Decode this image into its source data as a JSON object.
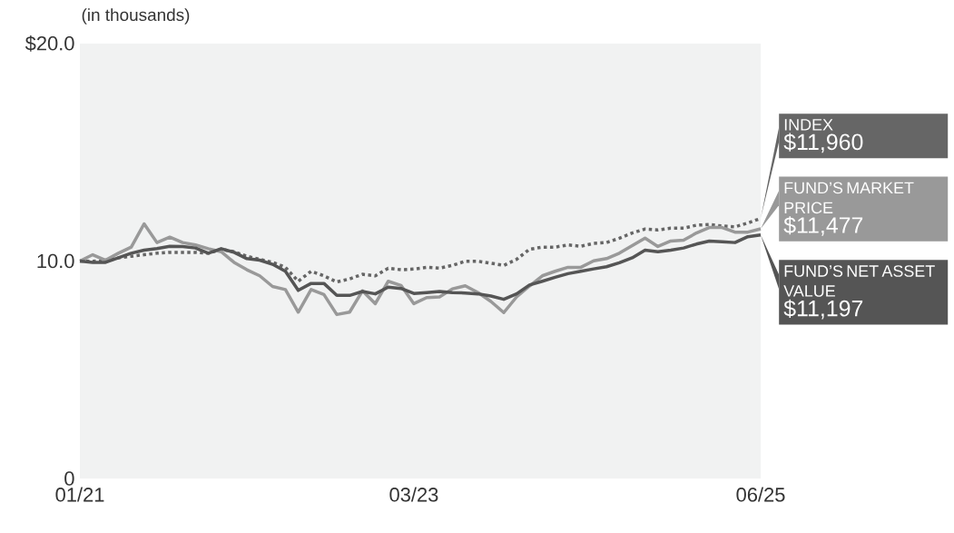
{
  "chart_data": {
    "type": "line",
    "ylabel": "(in thousands)",
    "x": [
      "2021-01",
      "2021-02",
      "2021-03",
      "2021-04",
      "2021-05",
      "2021-06",
      "2021-07",
      "2021-08",
      "2021-09",
      "2021-10",
      "2021-11",
      "2021-12",
      "2022-01",
      "2022-02",
      "2022-03",
      "2022-04",
      "2022-05",
      "2022-06",
      "2022-07",
      "2022-08",
      "2022-09",
      "2022-10",
      "2022-11",
      "2022-12",
      "2023-01",
      "2023-02",
      "2023-03",
      "2023-04",
      "2023-05",
      "2023-06",
      "2023-07",
      "2023-08",
      "2023-09",
      "2023-10",
      "2023-11",
      "2023-12",
      "2024-01",
      "2024-02",
      "2024-03",
      "2024-04",
      "2024-05",
      "2024-06",
      "2024-07",
      "2024-08",
      "2024-09",
      "2024-10",
      "2024-11",
      "2024-12",
      "2025-01",
      "2025-02",
      "2025-03",
      "2025-04",
      "2025-05",
      "2025-06"
    ],
    "series": [
      {
        "name": "INDEX",
        "color": "#666666",
        "line_style": "dotted",
        "values": [
          10.0,
          9.99,
          10.01,
          10.15,
          10.22,
          10.29,
          10.36,
          10.4,
          10.4,
          10.4,
          10.36,
          10.54,
          10.43,
          10.22,
          10.08,
          9.94,
          9.71,
          9.07,
          9.53,
          9.32,
          9.04,
          9.18,
          9.39,
          9.32,
          9.67,
          9.6,
          9.63,
          9.71,
          9.67,
          9.8,
          9.99,
          9.99,
          9.9,
          9.8,
          10.08,
          10.54,
          10.64,
          10.64,
          10.74,
          10.68,
          10.81,
          10.85,
          11.05,
          11.29,
          11.47,
          11.43,
          11.51,
          11.51,
          11.65,
          11.68,
          11.61,
          11.57,
          11.75,
          11.96
        ]
      },
      {
        "name": "FUND’S MARKET PRICE",
        "color": "#999999",
        "line_style": "solid",
        "values": [
          10.0,
          10.29,
          10.04,
          10.36,
          10.64,
          11.71,
          10.85,
          11.1,
          10.85,
          10.74,
          10.57,
          10.43,
          9.94,
          9.6,
          9.32,
          8.83,
          8.69,
          7.65,
          8.69,
          8.46,
          7.54,
          7.65,
          8.63,
          8.04,
          9.07,
          8.88,
          8.04,
          8.32,
          8.35,
          8.72,
          8.86,
          8.55,
          8.14,
          7.63,
          8.35,
          8.85,
          9.32,
          9.53,
          9.71,
          9.71,
          10.01,
          10.11,
          10.36,
          10.71,
          11.05,
          10.67,
          10.92,
          10.96,
          11.29,
          11.54,
          11.54,
          11.33,
          11.33,
          11.48
        ]
      },
      {
        "name": "FUND’S NET ASSET VALUE",
        "color": "#555555",
        "line_style": "solid",
        "values": [
          10.0,
          9.94,
          9.94,
          10.15,
          10.36,
          10.5,
          10.57,
          10.68,
          10.67,
          10.6,
          10.36,
          10.57,
          10.4,
          10.11,
          10.04,
          9.85,
          9.53,
          8.65,
          8.97,
          8.97,
          8.42,
          8.42,
          8.6,
          8.49,
          8.8,
          8.74,
          8.51,
          8.55,
          8.6,
          8.55,
          8.53,
          8.49,
          8.39,
          8.24,
          8.49,
          8.9,
          9.07,
          9.25,
          9.42,
          9.53,
          9.64,
          9.74,
          9.92,
          10.15,
          10.5,
          10.43,
          10.5,
          10.6,
          10.78,
          10.92,
          10.89,
          10.85,
          11.12,
          11.2
        ]
      }
    ],
    "annotations": [
      {
        "text": "$11,960",
        "x": "2025-06",
        "y": 11.96
      },
      {
        "text": "$11,477",
        "x": "2025-06",
        "y": 11.477
      },
      {
        "text": "$11,197",
        "x": "2025-06",
        "y": 11.197
      }
    ],
    "xlim": [
      "2021-01",
      "2025-06"
    ],
    "xticks": [
      {
        "value": "2021-01",
        "label": "01/21"
      },
      {
        "value": "2023-03",
        "label": "03/23"
      },
      {
        "value": "2025-06",
        "label": "06/25"
      }
    ],
    "ylim": [
      0,
      20
    ],
    "yticks": [
      {
        "value": 0,
        "label": "0"
      },
      {
        "value": 10,
        "label": "10.0"
      },
      {
        "value": 20,
        "label": "$20.0"
      }
    ],
    "grid": false,
    "legend": "right"
  }
}
